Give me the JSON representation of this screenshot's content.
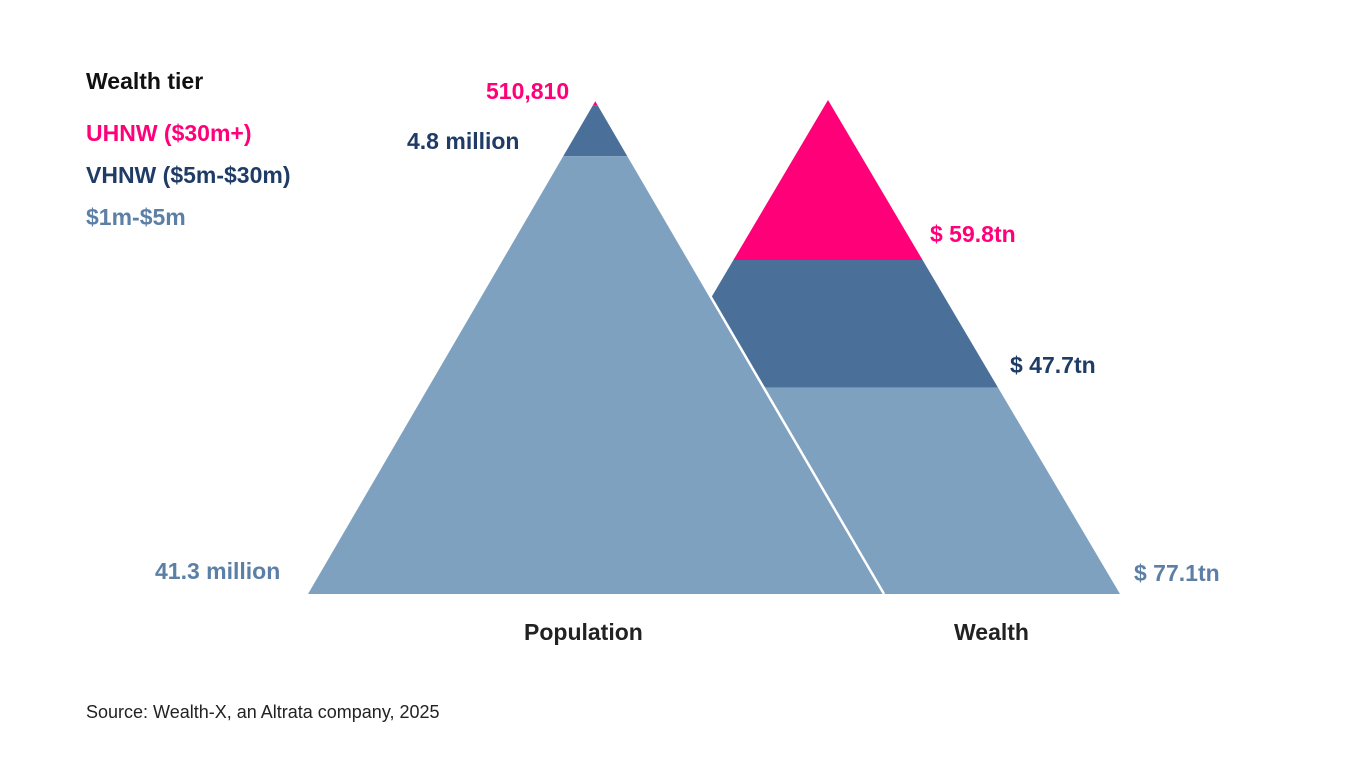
{
  "chart_data": {
    "type": "pyramid",
    "legend_title": "Wealth tier",
    "tiers": [
      {
        "name": "UHNW ($30m+)",
        "color": "#ff0078"
      },
      {
        "name": "VHNW ($5m-$30m)",
        "color": "#4a6f99"
      },
      {
        "name": "$1m-$5m",
        "color": "#7ea1c0"
      }
    ],
    "series": [
      {
        "name": "Population",
        "values": [
          0.51081,
          4.8,
          41.3
        ],
        "labels": [
          "510,810",
          "4.8 million",
          "41.3 million"
        ]
      },
      {
        "name": "Wealth",
        "values": [
          59.8,
          47.7,
          77.1
        ],
        "labels": [
          "$ 59.8tn",
          "$ 47.7tn",
          "$ 77.1tn"
        ]
      }
    ],
    "source": "Source: Wealth-X, an Altrata company, 2025"
  }
}
